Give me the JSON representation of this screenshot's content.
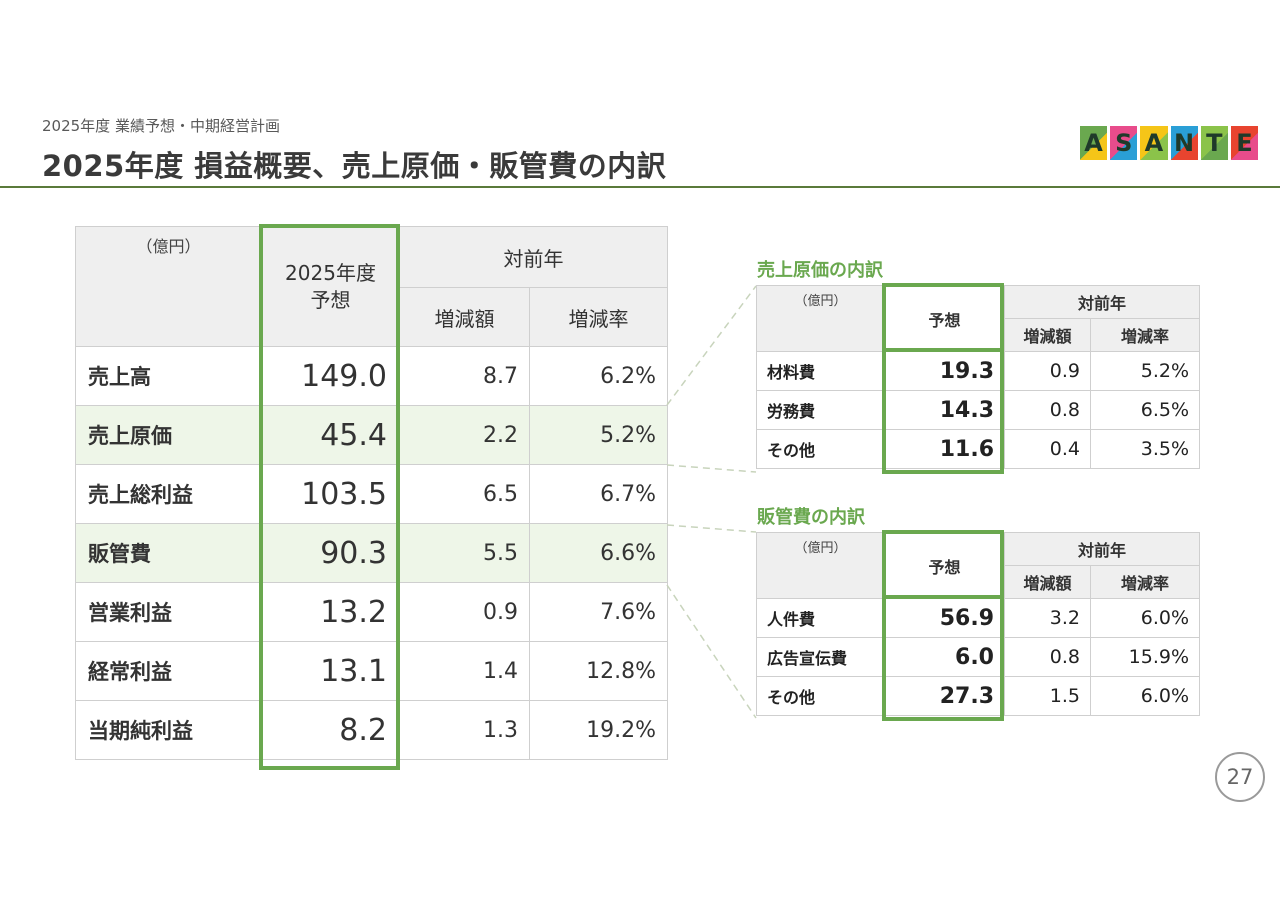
{
  "header": {
    "subtitle": "2025年度 業績予想・中期経営計画",
    "title": "2025年度 損益概要、売上原価・販管費の内訳"
  },
  "logo": {
    "letters": [
      "A",
      "S",
      "A",
      "N",
      "T",
      "E"
    ],
    "colors": [
      "#6aa84f",
      "#e84c8b",
      "#f5c518",
      "#2a9fd6",
      "#8bc34a",
      "#e8442f"
    ]
  },
  "main_table": {
    "unit": "（億円）",
    "forecast_header": [
      "2025年度",
      "予想"
    ],
    "yoy_header": "対前年",
    "change_amount_header": "増減額",
    "change_rate_header": "増減率",
    "rows": [
      {
        "label": "売上高",
        "forecast": "149.0",
        "change": "8.7",
        "rate": "6.2%"
      },
      {
        "label": "売上原価",
        "forecast": "45.4",
        "change": "2.2",
        "rate": "5.2%"
      },
      {
        "label": "売上総利益",
        "forecast": "103.5",
        "change": "6.5",
        "rate": "6.7%"
      },
      {
        "label": "販管費",
        "forecast": "90.3",
        "change": "5.5",
        "rate": "6.6%"
      },
      {
        "label": "営業利益",
        "forecast": "13.2",
        "change": "0.9",
        "rate": "7.6%"
      },
      {
        "label": "経常利益",
        "forecast": "13.1",
        "change": "1.4",
        "rate": "12.8%"
      },
      {
        "label": "当期純利益",
        "forecast": "8.2",
        "change": "1.3",
        "rate": "19.2%"
      }
    ]
  },
  "cogs_breakdown": {
    "title": "売上原価の内訳",
    "unit": "（億円）",
    "forecast_header": "予想",
    "yoy_header": "対前年",
    "change_amount_header": "増減額",
    "change_rate_header": "増減率",
    "rows": [
      {
        "label": "材料費",
        "forecast": "19.3",
        "change": "0.9",
        "rate": "5.2%"
      },
      {
        "label": "労務費",
        "forecast": "14.3",
        "change": "0.8",
        "rate": "6.5%"
      },
      {
        "label": "その他",
        "forecast": "11.6",
        "change": "0.4",
        "rate": "3.5%"
      }
    ]
  },
  "sga_breakdown": {
    "title": "販管費の内訳",
    "unit": "（億円）",
    "forecast_header": "予想",
    "yoy_header": "対前年",
    "change_amount_header": "増減額",
    "change_rate_header": "増減率",
    "rows": [
      {
        "label": "人件費",
        "forecast": "56.9",
        "change": "3.2",
        "rate": "6.0%"
      },
      {
        "label": "広告宣伝費",
        "forecast": "6.0",
        "change": "0.8",
        "rate": "15.9%"
      },
      {
        "label": "その他",
        "forecast": "27.3",
        "change": "1.5",
        "rate": "6.0%"
      }
    ]
  },
  "page_number": "27"
}
